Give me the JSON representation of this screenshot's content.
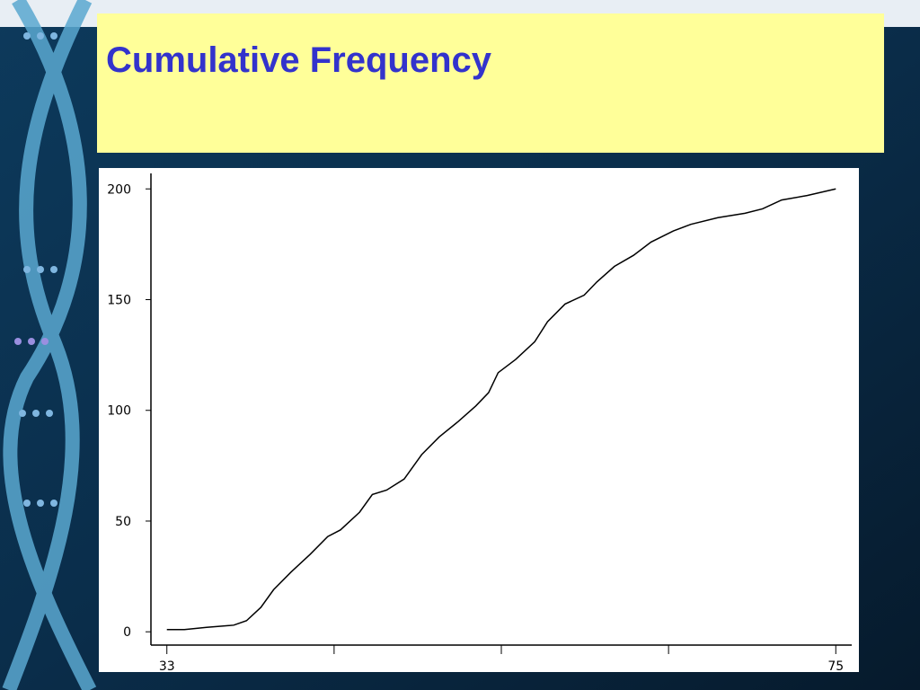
{
  "chart_data": {
    "type": "line",
    "title": "Cumulative Frequency",
    "x": [
      33,
      34.1,
      35.5,
      37.2,
      38,
      38.9,
      39.7,
      40.8,
      42,
      43.1,
      43.9,
      45.1,
      45.9,
      46.8,
      47.9,
      49,
      50.1,
      51.3,
      52.4,
      53.2,
      53.8,
      54.9,
      56.1,
      56.9,
      58,
      59.2,
      60,
      61.1,
      62.3,
      63.4,
      64.8,
      65.9,
      67.6,
      69.3,
      70.4,
      71.6,
      73.2,
      75
    ],
    "values": [
      1,
      1,
      2,
      3,
      5,
      11,
      19,
      27,
      35,
      43,
      46,
      54,
      62,
      64,
      69,
      80,
      88,
      95,
      102,
      108,
      117,
      123,
      131,
      140,
      148,
      152,
      158,
      165,
      170,
      176,
      181,
      184,
      187,
      189,
      191,
      195,
      197,
      200
    ],
    "color": "#000000",
    "xlim": [
      32,
      76
    ],
    "ylim": [
      -6,
      207
    ],
    "xticks": [
      33,
      {
        "value": 43.5,
        "label": null
      },
      {
        "value": 54,
        "label": null
      },
      {
        "value": 64.5,
        "label": null
      },
      75
    ],
    "yticks": [
      0,
      50,
      100,
      150,
      200
    ]
  }
}
